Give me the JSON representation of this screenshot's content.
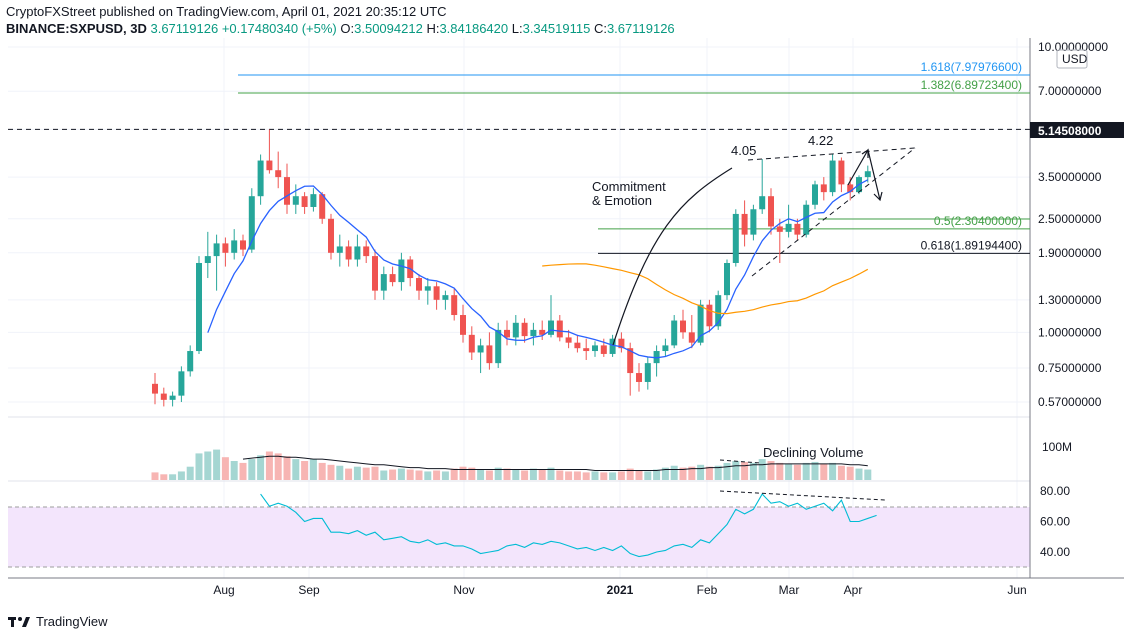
{
  "header": {
    "line1": "CryptoFXStreet published on TradingView.com, April 01, 2021 20:35:12 UTC",
    "symbol": "BINANCE:SXPUSD, 3D",
    "last": "3.67119126",
    "change": "+0.17480340 (+5%)",
    "o_label": "O:",
    "o_val": "3.50094212",
    "h_label": "H:",
    "h_val": "3.84186420",
    "l_label": "L:",
    "l_val": "3.34519115",
    "c_label": "C:",
    "c_val": "3.67119126"
  },
  "colors": {
    "up": "#26a69a",
    "down": "#ef5350",
    "sma": "#2962ff",
    "ma50": "#ff9800",
    "fib1618": "#2196f3",
    "fibgreen": "#43a047",
    "rsi": "#00bcd4",
    "rsiband": "#f3e5fc"
  },
  "chart_data": {
    "type": "candlestick",
    "price_scale": "log",
    "currency": "USD",
    "y_ticks": [
      "10.00000000",
      "7.00000000",
      "5.14508000",
      "3.50000000",
      "2.50000000",
      "1.90000000",
      "1.30000000",
      "1.00000000",
      "0.75000000",
      "0.57000000"
    ],
    "x_ticks": [
      "Aug",
      "Sep",
      "Nov",
      "2021",
      "Feb",
      "Mar",
      "Apr",
      "Jun"
    ],
    "volume_tick": "100M",
    "rsi_ticks": [
      "80.00",
      "60.00",
      "40.00"
    ],
    "fib_levels": [
      {
        "ratio": "1.618",
        "price": "7.97976600",
        "label": "1.618(7.97976600)"
      },
      {
        "ratio": "1.382",
        "price": "6.89723400",
        "label": "1.382(6.89723400)"
      },
      {
        "ratio": "0.5",
        "price": "2.30400000",
        "label": "0.5(2.30400000)"
      },
      {
        "ratio": "0.618",
        "price": "1.89194400",
        "label": "0.618(1.89194400)"
      }
    ],
    "resistance": "5.14508000",
    "annotations": [
      "Commitment",
      "& Emotion",
      "4.05",
      "4.22",
      "Declining Volume"
    ],
    "candles": [
      {
        "o": 0.66,
        "h": 0.72,
        "l": 0.56,
        "c": 0.61
      },
      {
        "o": 0.61,
        "h": 0.64,
        "l": 0.55,
        "c": 0.58
      },
      {
        "o": 0.58,
        "h": 0.62,
        "l": 0.55,
        "c": 0.6
      },
      {
        "o": 0.6,
        "h": 0.76,
        "l": 0.57,
        "c": 0.73
      },
      {
        "o": 0.73,
        "h": 0.9,
        "l": 0.7,
        "c": 0.86
      },
      {
        "o": 0.86,
        "h": 1.85,
        "l": 0.84,
        "c": 1.75
      },
      {
        "o": 1.75,
        "h": 2.25,
        "l": 1.55,
        "c": 1.85
      },
      {
        "o": 1.85,
        "h": 2.2,
        "l": 1.4,
        "c": 2.05
      },
      {
        "o": 2.05,
        "h": 2.15,
        "l": 1.7,
        "c": 1.9
      },
      {
        "o": 1.9,
        "h": 2.3,
        "l": 1.8,
        "c": 2.1
      },
      {
        "o": 2.1,
        "h": 2.2,
        "l": 1.85,
        "c": 1.95
      },
      {
        "o": 1.95,
        "h": 3.2,
        "l": 1.9,
        "c": 3.0
      },
      {
        "o": 3.0,
        "h": 4.2,
        "l": 2.8,
        "c": 4.0
      },
      {
        "o": 4.0,
        "h": 5.14,
        "l": 3.6,
        "c": 3.7
      },
      {
        "o": 3.7,
        "h": 4.3,
        "l": 3.2,
        "c": 3.5
      },
      {
        "o": 3.5,
        "h": 3.9,
        "l": 2.6,
        "c": 2.8
      },
      {
        "o": 2.8,
        "h": 3.3,
        "l": 2.6,
        "c": 3.0
      },
      {
        "o": 3.0,
        "h": 3.1,
        "l": 2.6,
        "c": 2.75
      },
      {
        "o": 2.75,
        "h": 3.2,
        "l": 2.65,
        "c": 3.05
      },
      {
        "o": 3.05,
        "h": 3.1,
        "l": 2.4,
        "c": 2.5
      },
      {
        "o": 2.5,
        "h": 2.6,
        "l": 1.8,
        "c": 1.9
      },
      {
        "o": 1.9,
        "h": 2.2,
        "l": 1.7,
        "c": 2.0
      },
      {
        "o": 2.0,
        "h": 2.1,
        "l": 1.7,
        "c": 1.8
      },
      {
        "o": 1.8,
        "h": 2.2,
        "l": 1.7,
        "c": 2.0
      },
      {
        "o": 2.0,
        "h": 2.1,
        "l": 1.75,
        "c": 1.85
      },
      {
        "o": 1.85,
        "h": 1.95,
        "l": 1.3,
        "c": 1.4
      },
      {
        "o": 1.4,
        "h": 1.7,
        "l": 1.3,
        "c": 1.6
      },
      {
        "o": 1.6,
        "h": 1.7,
        "l": 1.45,
        "c": 1.5
      },
      {
        "o": 1.5,
        "h": 1.9,
        "l": 1.4,
        "c": 1.8
      },
      {
        "o": 1.8,
        "h": 1.85,
        "l": 1.45,
        "c": 1.55
      },
      {
        "o": 1.55,
        "h": 1.6,
        "l": 1.3,
        "c": 1.4
      },
      {
        "o": 1.4,
        "h": 1.55,
        "l": 1.25,
        "c": 1.45
      },
      {
        "o": 1.45,
        "h": 1.5,
        "l": 1.2,
        "c": 1.3
      },
      {
        "o": 1.3,
        "h": 1.4,
        "l": 1.2,
        "c": 1.35
      },
      {
        "o": 1.35,
        "h": 1.42,
        "l": 1.1,
        "c": 1.15
      },
      {
        "o": 1.15,
        "h": 1.25,
        "l": 0.92,
        "c": 0.98
      },
      {
        "o": 0.98,
        "h": 1.05,
        "l": 0.8,
        "c": 0.85
      },
      {
        "o": 0.85,
        "h": 0.95,
        "l": 0.72,
        "c": 0.9
      },
      {
        "o": 0.9,
        "h": 1.0,
        "l": 0.74,
        "c": 0.78
      },
      {
        "o": 0.78,
        "h": 1.08,
        "l": 0.75,
        "c": 1.02
      },
      {
        "o": 1.02,
        "h": 1.1,
        "l": 0.9,
        "c": 0.96
      },
      {
        "o": 0.96,
        "h": 1.15,
        "l": 0.9,
        "c": 1.08
      },
      {
        "o": 1.08,
        "h": 1.12,
        "l": 0.92,
        "c": 0.97
      },
      {
        "o": 0.97,
        "h": 1.08,
        "l": 0.9,
        "c": 1.02
      },
      {
        "o": 1.02,
        "h": 1.1,
        "l": 0.94,
        "c": 0.98
      },
      {
        "o": 0.98,
        "h": 1.35,
        "l": 0.96,
        "c": 1.1
      },
      {
        "o": 1.1,
        "h": 1.15,
        "l": 0.93,
        "c": 0.96
      },
      {
        "o": 0.96,
        "h": 1.02,
        "l": 0.88,
        "c": 0.92
      },
      {
        "o": 0.92,
        "h": 0.98,
        "l": 0.85,
        "c": 0.88
      },
      {
        "o": 0.88,
        "h": 0.95,
        "l": 0.8,
        "c": 0.86
      },
      {
        "o": 0.86,
        "h": 0.93,
        "l": 0.82,
        "c": 0.9
      },
      {
        "o": 0.9,
        "h": 0.95,
        "l": 0.82,
        "c": 0.84
      },
      {
        "o": 0.84,
        "h": 0.98,
        "l": 0.82,
        "c": 0.95
      },
      {
        "o": 0.95,
        "h": 1.0,
        "l": 0.85,
        "c": 0.88
      },
      {
        "o": 0.88,
        "h": 0.92,
        "l": 0.6,
        "c": 0.72
      },
      {
        "o": 0.72,
        "h": 0.78,
        "l": 0.62,
        "c": 0.67
      },
      {
        "o": 0.67,
        "h": 0.82,
        "l": 0.63,
        "c": 0.78
      },
      {
        "o": 0.78,
        "h": 0.9,
        "l": 0.7,
        "c": 0.86
      },
      {
        "o": 0.86,
        "h": 0.95,
        "l": 0.82,
        "c": 0.9
      },
      {
        "o": 0.9,
        "h": 1.15,
        "l": 0.88,
        "c": 1.1
      },
      {
        "o": 1.1,
        "h": 1.2,
        "l": 0.95,
        "c": 1.0
      },
      {
        "o": 1.0,
        "h": 1.15,
        "l": 0.88,
        "c": 0.92
      },
      {
        "o": 0.92,
        "h": 1.3,
        "l": 0.9,
        "c": 1.25
      },
      {
        "o": 1.25,
        "h": 1.3,
        "l": 1.0,
        "c": 1.05
      },
      {
        "o": 1.05,
        "h": 1.4,
        "l": 1.02,
        "c": 1.35
      },
      {
        "o": 1.35,
        "h": 1.8,
        "l": 1.3,
        "c": 1.75
      },
      {
        "o": 1.75,
        "h": 2.7,
        "l": 1.7,
        "c": 2.6
      },
      {
        "o": 2.6,
        "h": 2.9,
        "l": 2.0,
        "c": 2.2
      },
      {
        "o": 2.2,
        "h": 2.8,
        "l": 2.1,
        "c": 2.7
      },
      {
        "o": 2.7,
        "h": 4.05,
        "l": 2.6,
        "c": 3.0
      },
      {
        "o": 3.0,
        "h": 3.2,
        "l": 2.2,
        "c": 2.35
      },
      {
        "o": 2.35,
        "h": 2.5,
        "l": 1.75,
        "c": 2.25
      },
      {
        "o": 2.25,
        "h": 2.8,
        "l": 2.15,
        "c": 2.4
      },
      {
        "o": 2.4,
        "h": 2.5,
        "l": 2.1,
        "c": 2.2
      },
      {
        "o": 2.2,
        "h": 2.9,
        "l": 2.15,
        "c": 2.8
      },
      {
        "o": 2.8,
        "h": 3.4,
        "l": 2.7,
        "c": 3.3
      },
      {
        "o": 3.3,
        "h": 3.5,
        "l": 2.9,
        "c": 3.1
      },
      {
        "o": 3.1,
        "h": 4.22,
        "l": 3.0,
        "c": 4.0
      },
      {
        "o": 4.0,
        "h": 4.1,
        "l": 3.1,
        "c": 3.3
      },
      {
        "o": 3.3,
        "h": 3.5,
        "l": 2.9,
        "c": 3.1
      },
      {
        "o": 3.1,
        "h": 3.55,
        "l": 3.05,
        "c": 3.5
      },
      {
        "o": 3.5,
        "h": 3.84,
        "l": 3.35,
        "c": 3.67
      }
    ],
    "volume": [
      8,
      6,
      6,
      9,
      14,
      28,
      30,
      32,
      24,
      20,
      18,
      22,
      26,
      30,
      28,
      25,
      22,
      20,
      22,
      18,
      16,
      15,
      12,
      14,
      13,
      14,
      10,
      11,
      12,
      11,
      10,
      9,
      10,
      9,
      12,
      14,
      13,
      11,
      10,
      13,
      12,
      11,
      10,
      12,
      11,
      13,
      10,
      9,
      9,
      8,
      9,
      8,
      8,
      9,
      12,
      10,
      9,
      11,
      13,
      15,
      13,
      14,
      16,
      14,
      15,
      18,
      20,
      19,
      18,
      22,
      20,
      18,
      17,
      16,
      18,
      19,
      17,
      18,
      15,
      14,
      12,
      11
    ],
    "volume_ma": [
      null,
      null,
      null,
      null,
      null,
      null,
      null,
      null,
      null,
      null,
      22,
      23,
      24,
      25,
      25,
      24,
      24,
      23,
      22,
      22,
      21,
      20,
      19,
      18,
      17,
      16,
      16,
      15,
      14,
      13,
      13,
      12,
      12,
      12,
      11,
      11,
      11,
      11,
      11,
      11,
      11,
      11,
      11,
      11,
      11,
      11,
      11,
      11,
      11,
      11,
      10,
      10,
      10,
      10,
      10,
      10,
      10,
      10,
      11,
      11,
      11,
      12,
      12,
      13,
      13,
      14,
      15,
      15,
      16,
      16,
      17,
      17,
      17,
      17,
      17,
      17,
      17,
      17,
      17,
      16,
      16,
      15
    ],
    "rsi": [
      null,
      null,
      null,
      null,
      null,
      null,
      null,
      null,
      null,
      null,
      null,
      null,
      78,
      70,
      72,
      70,
      66,
      60,
      62,
      62,
      53,
      53,
      52,
      54,
      51,
      53,
      48,
      49,
      50,
      47,
      46,
      48,
      45,
      46,
      44,
      44,
      42,
      39,
      40,
      41,
      44,
      45,
      43,
      46,
      45,
      47,
      46,
      44,
      42,
      43,
      41,
      43,
      41,
      44,
      39,
      37,
      38,
      40,
      41,
      44,
      45,
      43,
      48,
      46,
      52,
      58,
      68,
      65,
      68,
      78,
      72,
      73,
      70,
      72,
      68,
      70,
      72,
      67,
      74,
      60,
      60,
      62,
      64
    ]
  },
  "footer": {
    "brand": "TradingView"
  }
}
